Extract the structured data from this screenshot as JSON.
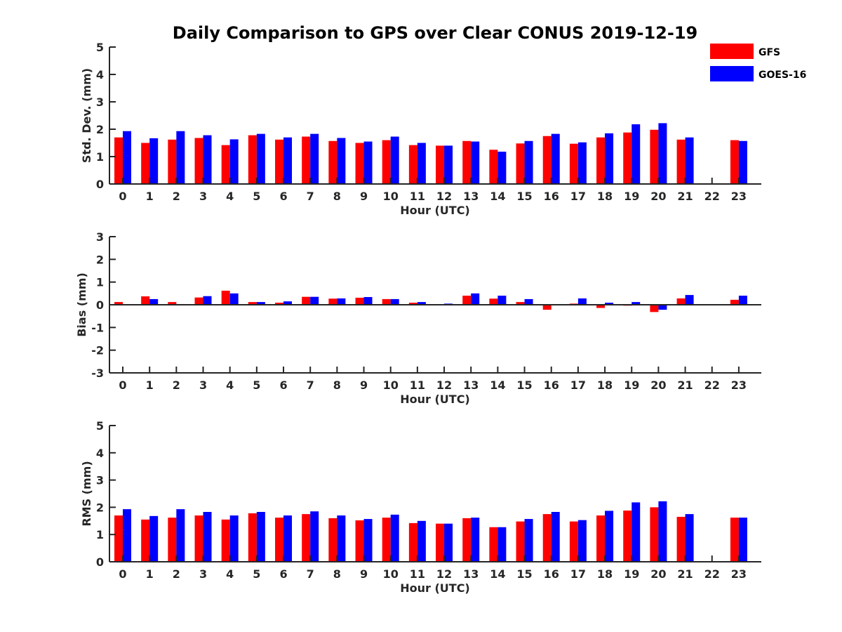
{
  "title": "Daily Comparison to GPS over Clear CONUS 2019-12-19",
  "colors": {
    "GFS": "#ff0000",
    "GOES-16": "#0000ff",
    "axis": "#262626"
  },
  "legend": {
    "position": "top-right",
    "entries": [
      "GFS",
      "GOES-16"
    ]
  },
  "chart_data": [
    {
      "type": "bar",
      "id": "std",
      "title": "",
      "xlabel": "Hour (UTC)",
      "ylabel": "Std. Dev. (mm)",
      "ylim": [
        0,
        5
      ],
      "yticks": [
        0,
        1,
        2,
        3,
        4,
        5
      ],
      "categories": [
        "0",
        "1",
        "2",
        "3",
        "4",
        "5",
        "6",
        "7",
        "8",
        "9",
        "10",
        "11",
        "12",
        "13",
        "14",
        "15",
        "16",
        "17",
        "18",
        "19",
        "20",
        "21",
        "22",
        "23"
      ],
      "series": [
        {
          "name": "GFS",
          "values": [
            1.7,
            1.5,
            1.62,
            1.68,
            1.42,
            1.78,
            1.62,
            1.73,
            1.57,
            1.5,
            1.6,
            1.42,
            1.4,
            1.57,
            1.25,
            1.48,
            1.75,
            1.47,
            1.7,
            1.88,
            1.98,
            1.62,
            null,
            1.6
          ]
        },
        {
          "name": "GOES-16",
          "values": [
            1.93,
            1.67,
            1.93,
            1.78,
            1.63,
            1.83,
            1.7,
            1.83,
            1.68,
            1.55,
            1.73,
            1.5,
            1.4,
            1.55,
            1.18,
            1.57,
            1.83,
            1.52,
            1.85,
            2.18,
            2.22,
            1.7,
            null,
            1.57
          ]
        }
      ]
    },
    {
      "type": "bar",
      "id": "bias",
      "title": "",
      "xlabel": "Hour (UTC)",
      "ylabel": "Bias (mm)",
      "ylim": [
        -3,
        3
      ],
      "yticks": [
        -3,
        -2,
        -1,
        0,
        1,
        2,
        3
      ],
      "categories": [
        "0",
        "1",
        "2",
        "3",
        "4",
        "5",
        "6",
        "7",
        "8",
        "9",
        "10",
        "11",
        "12",
        "13",
        "14",
        "15",
        "16",
        "17",
        "18",
        "19",
        "20",
        "21",
        "22",
        "23"
      ],
      "series": [
        {
          "name": "GFS",
          "values": [
            0.12,
            0.37,
            0.12,
            0.32,
            0.62,
            0.12,
            0.09,
            0.35,
            0.27,
            0.31,
            0.25,
            0.09,
            0.02,
            0.4,
            0.27,
            0.12,
            -0.22,
            0.05,
            -0.14,
            -0.04,
            -0.32,
            0.28,
            null,
            0.22
          ]
        },
        {
          "name": "GOES-16",
          "values": [
            0.0,
            0.25,
            0.0,
            0.38,
            0.5,
            0.12,
            0.15,
            0.35,
            0.28,
            0.34,
            0.25,
            0.12,
            0.05,
            0.5,
            0.4,
            0.25,
            0.0,
            0.28,
            0.09,
            0.12,
            -0.22,
            0.43,
            null,
            0.4
          ]
        }
      ]
    },
    {
      "type": "bar",
      "id": "rms",
      "title": "",
      "xlabel": "Hour (UTC)",
      "ylabel": "RMS (mm)",
      "ylim": [
        0,
        5
      ],
      "yticks": [
        0,
        1,
        2,
        3,
        4,
        5
      ],
      "categories": [
        "0",
        "1",
        "2",
        "3",
        "4",
        "5",
        "6",
        "7",
        "8",
        "9",
        "10",
        "11",
        "12",
        "13",
        "14",
        "15",
        "16",
        "17",
        "18",
        "19",
        "20",
        "21",
        "22",
        "23"
      ],
      "series": [
        {
          "name": "GFS",
          "values": [
            1.7,
            1.55,
            1.62,
            1.7,
            1.55,
            1.78,
            1.62,
            1.75,
            1.6,
            1.52,
            1.62,
            1.42,
            1.4,
            1.6,
            1.27,
            1.48,
            1.75,
            1.48,
            1.7,
            1.88,
            2.0,
            1.65,
            null,
            1.62
          ]
        },
        {
          "name": "GOES-16",
          "values": [
            1.93,
            1.68,
            1.93,
            1.83,
            1.7,
            1.83,
            1.7,
            1.85,
            1.7,
            1.57,
            1.73,
            1.5,
            1.4,
            1.62,
            1.27,
            1.57,
            1.83,
            1.53,
            1.87,
            2.18,
            2.22,
            1.75,
            null,
            1.62
          ]
        }
      ]
    }
  ]
}
